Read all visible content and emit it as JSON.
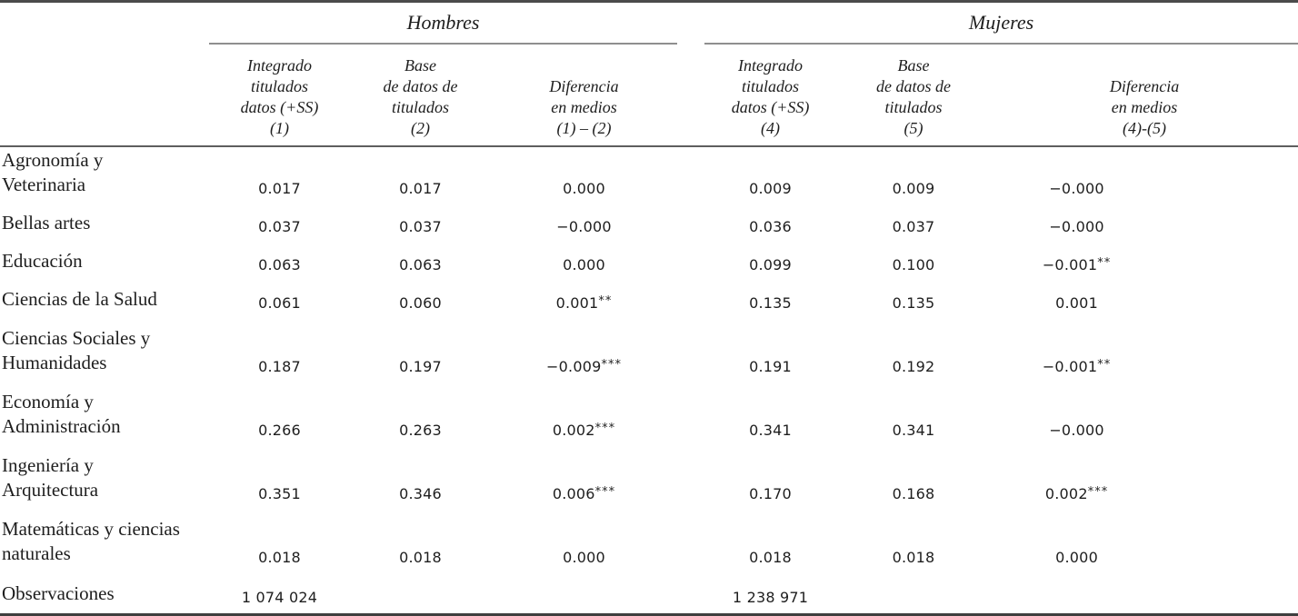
{
  "table": {
    "groups": [
      {
        "label": "Hombres"
      },
      {
        "label": "Mujeres"
      }
    ],
    "column_headers": [
      {
        "group": "Hombres",
        "lines": [
          "Integrado",
          "titulados",
          "datos (+SS)",
          "(1)"
        ]
      },
      {
        "group": "Hombres",
        "lines": [
          "Base",
          "de datos de",
          "titulados",
          "(2)"
        ]
      },
      {
        "group": "Hombres",
        "lines": [
          "Diferencia",
          "en medios",
          "(1) – (2)"
        ]
      },
      {
        "group": "Mujeres",
        "lines": [
          "Integrado",
          "titulados",
          "datos (+SS)",
          "(4)"
        ]
      },
      {
        "group": "Mujeres",
        "lines": [
          "Base",
          "de datos de",
          "titulados",
          "(5)"
        ]
      },
      {
        "group": "Mujeres",
        "lines": [
          "Diferencia",
          "en medios",
          "(4)-(5)"
        ]
      }
    ],
    "rows": [
      {
        "label_lines": [
          "Agronomía y",
          "Veterinaria"
        ],
        "cells": [
          {
            "t": "0.017"
          },
          {
            "t": "0.017"
          },
          {
            "t": "0.000"
          },
          {
            "t": "0.009"
          },
          {
            "t": "0.009"
          },
          {
            "t": "−0.000"
          }
        ]
      },
      {
        "label_lines": [
          "Bellas artes"
        ],
        "cells": [
          {
            "t": "0.037"
          },
          {
            "t": "0.037"
          },
          {
            "t": "−0.000"
          },
          {
            "t": "0.036"
          },
          {
            "t": "0.037"
          },
          {
            "t": "−0.000"
          }
        ]
      },
      {
        "label_lines": [
          "Educación"
        ],
        "cells": [
          {
            "t": "0.063"
          },
          {
            "t": "0.063"
          },
          {
            "t": "0.000"
          },
          {
            "t": "0.099"
          },
          {
            "t": "0.100"
          },
          {
            "t": "−0.001",
            "stars": "**"
          }
        ]
      },
      {
        "label_lines": [
          "Ciencias de la Salud"
        ],
        "cells": [
          {
            "t": "0.061"
          },
          {
            "t": "0.060"
          },
          {
            "t": "0.001",
            "stars": "**"
          },
          {
            "t": "0.135"
          },
          {
            "t": "0.135"
          },
          {
            "t": "0.001"
          }
        ]
      },
      {
        "label_lines": [
          "Ciencias Sociales y",
          "Humanidades"
        ],
        "cells": [
          {
            "t": "0.187"
          },
          {
            "t": "0.197"
          },
          {
            "t": "−0.009",
            "stars": "***"
          },
          {
            "t": "0.191"
          },
          {
            "t": "0.192"
          },
          {
            "t": "−0.001",
            "stars": "**"
          }
        ]
      },
      {
        "label_lines": [
          "Economía y",
          "Administración"
        ],
        "cells": [
          {
            "t": "0.266"
          },
          {
            "t": "0.263"
          },
          {
            "t": "0.002",
            "stars": "***"
          },
          {
            "t": "0.341"
          },
          {
            "t": "0.341"
          },
          {
            "t": "−0.000"
          }
        ]
      },
      {
        "label_lines": [
          "Ingeniería y",
          "Arquitectura"
        ],
        "cells": [
          {
            "t": "0.351"
          },
          {
            "t": "0.346"
          },
          {
            "t": "0.006",
            "stars": "***"
          },
          {
            "t": "0.170"
          },
          {
            "t": "0.168"
          },
          {
            "t": "0.002",
            "stars": "***"
          }
        ]
      },
      {
        "label_lines": [
          "Matemáticas y ciencias",
          "naturales"
        ],
        "cells": [
          {
            "t": "0.018"
          },
          {
            "t": "0.018"
          },
          {
            "t": "0.000"
          },
          {
            "t": "0.018"
          },
          {
            "t": "0.018"
          },
          {
            "t": "0.000"
          }
        ]
      }
    ],
    "observations": {
      "label": "Observaciones",
      "hombres_n": "1 074 024",
      "mujeres_n": "1 238 971"
    }
  }
}
